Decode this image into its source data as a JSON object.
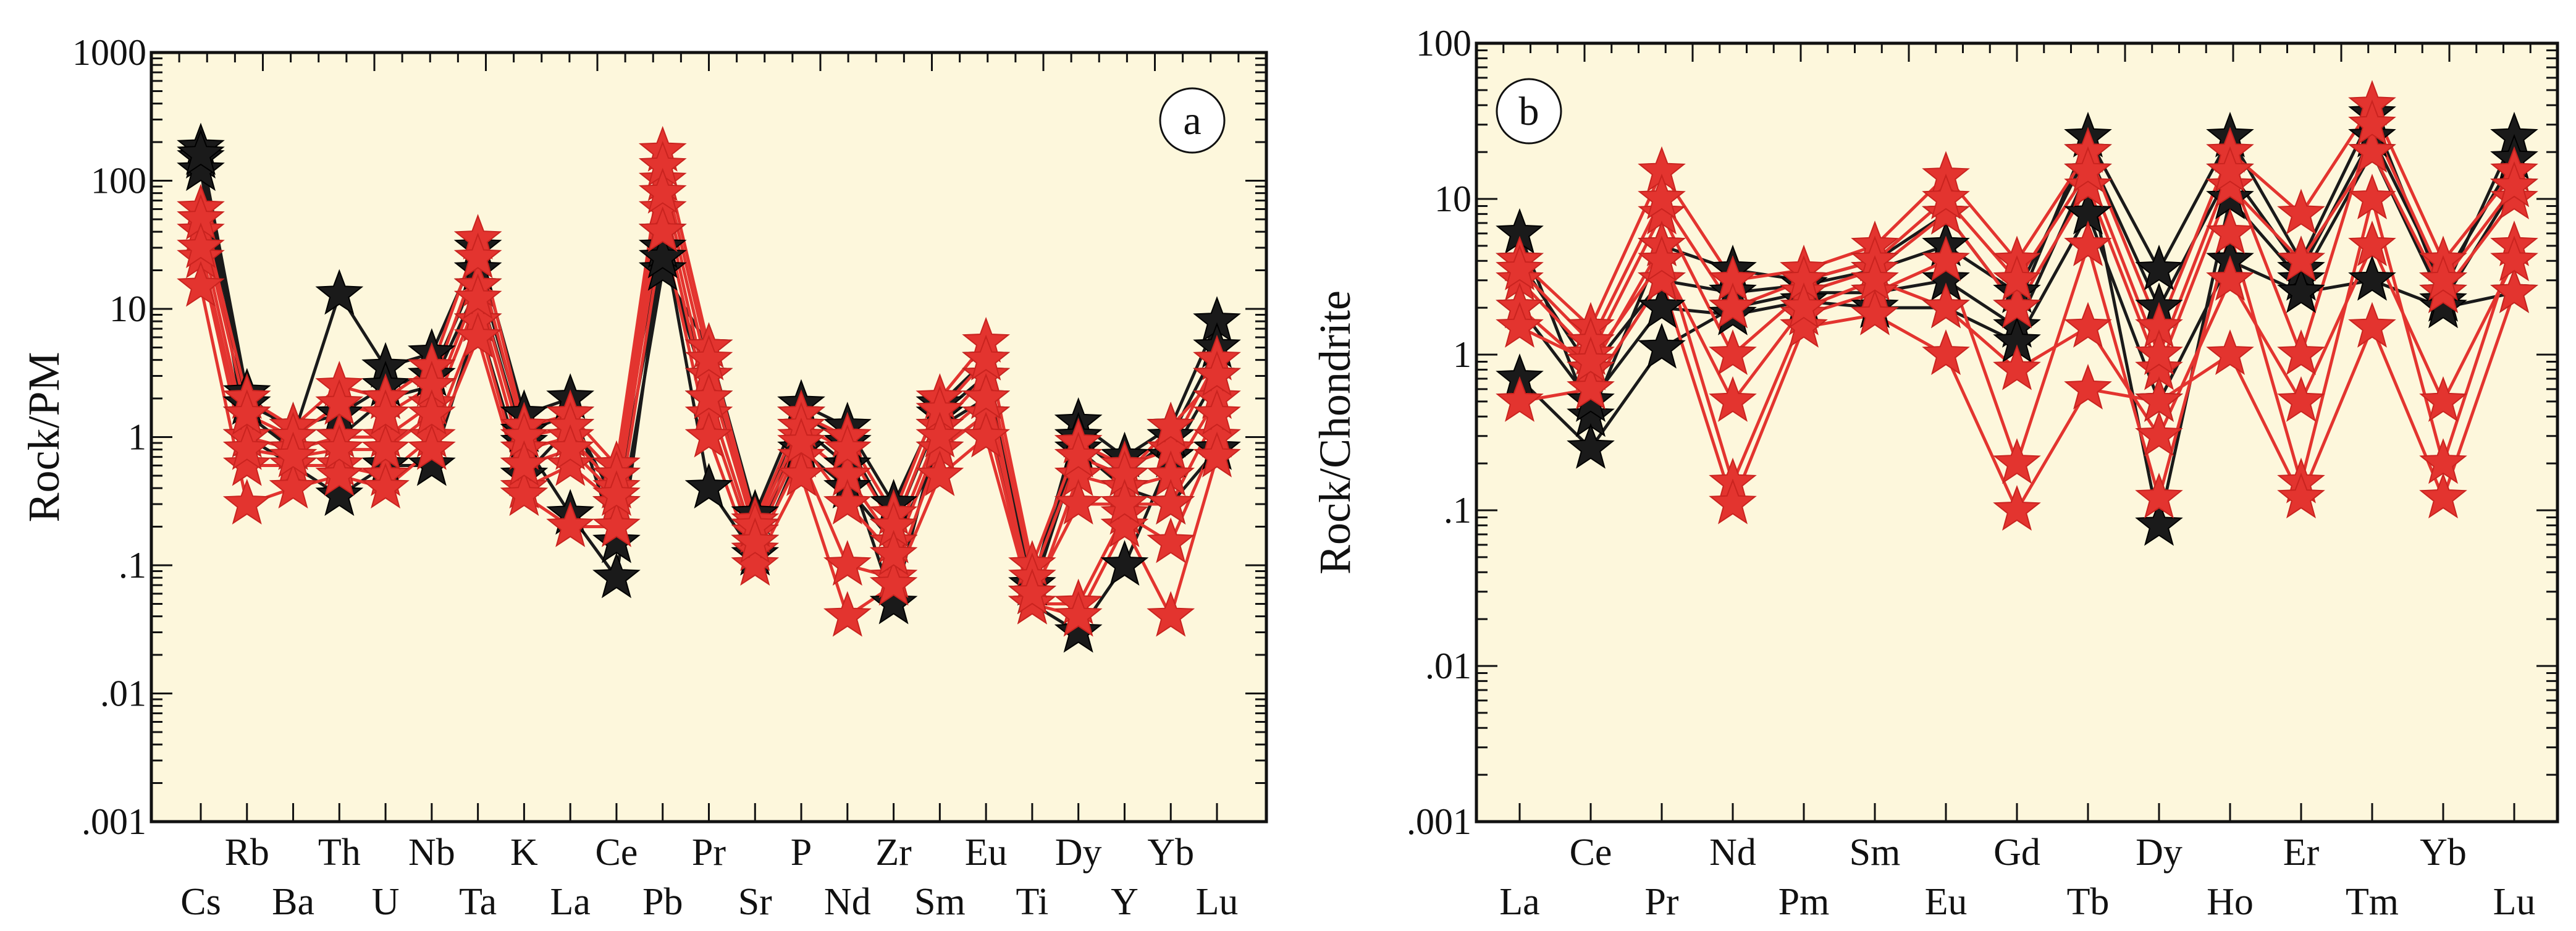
{
  "chart_data": [
    {
      "type": "line",
      "panel_label": "a",
      "ylabel": "Rock/PM",
      "yscale": "log",
      "ylim": [
        0.001,
        1000
      ],
      "ytick_labels": [
        "1000",
        "100",
        "10",
        "1",
        ".1",
        ".01",
        ".001"
      ],
      "categories": [
        "Cs",
        "Rb",
        "Ba",
        "Th",
        "U",
        "Nb",
        "Ta",
        "K",
        "La",
        "Ce",
        "Pb",
        "Pr",
        "Sr",
        "P",
        "Nd",
        "Zr",
        "Sm",
        "Eu",
        "Ti",
        "Dy",
        "Y",
        "Yb",
        "Lu"
      ],
      "background": "#fdf7dc",
      "series_groups": [
        {
          "name": "black samples",
          "color": "#1a1a1a",
          "marker": "star",
          "series": [
            [
              180,
              2.2,
              1.0,
              13.0,
              3.5,
              4.5,
              30,
              1.5,
              2.0,
              0.15,
              20,
              5.0,
              0.25,
              1.8,
              1.2,
              0.3,
              1.8,
              4.0,
              0.07,
              1.3,
              0.7,
              1.2,
              8.0
            ],
            [
              150,
              1.5,
              0.8,
              1.0,
              2.0,
              2.5,
              15,
              0.9,
              0.25,
              0.08,
              30,
              2.0,
              0.15,
              1.2,
              0.6,
              0.05,
              1.2,
              2.0,
              0.05,
              0.03,
              0.1,
              0.7,
              3.0
            ],
            [
              120,
              1.0,
              0.6,
              0.35,
              0.6,
              0.6,
              8,
              0.5,
              1.2,
              0.5,
              40,
              0.4,
              0.12,
              0.8,
              0.4,
              0.15,
              0.8,
              1.5,
              0.06,
              0.8,
              0.4,
              0.3,
              0.8
            ],
            [
              160,
              1.8,
              1.2,
              1.5,
              2.5,
              3.0,
              20,
              1.1,
              1.5,
              0.3,
              25,
              3.0,
              0.2,
              1.5,
              0.9,
              0.2,
              1.5,
              3.0,
              0.06,
              1.0,
              0.5,
              1.0,
              5.0
            ]
          ]
        },
        {
          "name": "red samples",
          "color": "#e3342f",
          "marker": "star",
          "series": [
            [
              60,
              2.0,
              1.2,
              2.5,
              2.0,
              3.5,
              35,
              1.2,
              1.5,
              0.6,
              170,
              5.0,
              0.22,
              1.5,
              1.0,
              0.25,
              2.0,
              5.5,
              0.1,
              0.9,
              0.6,
              0.8,
              4.0
            ],
            [
              40,
              1.0,
              0.8,
              1.0,
              1.0,
              1.8,
              15,
              0.8,
              1.0,
              0.4,
              100,
              3.0,
              0.18,
              1.0,
              0.5,
              0.15,
              1.2,
              3.0,
              0.05,
              0.5,
              0.4,
              0.5,
              2.0
            ],
            [
              25,
              0.6,
              0.6,
              0.6,
              0.5,
              1.0,
              8,
              0.4,
              0.6,
              0.3,
              60,
              1.5,
              0.13,
              0.7,
              0.1,
              0.08,
              0.8,
              1.5,
              0.05,
              0.05,
              0.25,
              0.15,
              1.0
            ],
            [
              15,
              0.3,
              0.4,
              0.5,
              0.4,
              0.8,
              6,
              0.35,
              0.2,
              0.2,
              40,
              1.0,
              0.1,
              0.5,
              0.04,
              0.07,
              0.5,
              1.0,
              0.05,
              0.04,
              0.2,
              0.04,
              0.7
            ],
            [
              50,
              1.5,
              1.0,
              1.8,
              1.5,
              2.5,
              25,
              1.0,
              1.2,
              0.5,
              130,
              4.0,
              0.2,
              1.2,
              0.8,
              0.2,
              1.6,
              4.0,
              0.08,
              0.7,
              0.5,
              1.2,
              3.0
            ],
            [
              30,
              0.8,
              0.7,
              0.8,
              0.8,
              1.5,
              12,
              0.6,
              0.8,
              0.35,
              80,
              2.0,
              0.15,
              0.9,
              0.3,
              0.12,
              1.0,
              2.0,
              0.06,
              0.3,
              0.3,
              0.3,
              1.5
            ]
          ]
        }
      ]
    },
    {
      "type": "line",
      "panel_label": "b",
      "ylabel": "Rock/Chondrite",
      "yscale": "log",
      "ylim": [
        0.001,
        100
      ],
      "ytick_labels": [
        "100",
        "10",
        "1",
        ".1",
        ".01",
        ".001"
      ],
      "categories": [
        "La",
        "Ce",
        "Pr",
        "Nd",
        "Pm",
        "Sm",
        "Eu",
        "Gd",
        "Tb",
        "Dy",
        "Ho",
        "Er",
        "Tm",
        "Yb",
        "Lu"
      ],
      "background": "#fdf7dc",
      "series_groups": [
        {
          "name": "black samples",
          "color": "#1a1a1a",
          "marker": "star",
          "series": [
            [
              6.0,
              0.4,
              5.0,
              3.5,
              3.0,
              4.0,
              8.0,
              2.0,
              25,
              3.5,
              25,
              4.0,
              35,
              2.5,
              25
            ],
            [
              0.7,
              0.25,
              1.1,
              2.0,
              2.5,
              2.5,
              3.0,
              1.5,
              15,
              0.08,
              10,
              3.0,
              20,
              2.2,
              12
            ],
            [
              4.0,
              0.8,
              3.0,
              2.5,
              2.8,
              3.5,
              5.0,
              2.5,
              20,
              2.0,
              15,
              3.5,
              25,
              3.0,
              18
            ],
            [
              2.0,
              0.5,
              2.0,
              1.8,
              2.2,
              2.0,
              2.0,
              1.2,
              8,
              0.5,
              4,
              2.5,
              3,
              2.0,
              2.5
            ]
          ]
        },
        {
          "name": "red samples",
          "color": "#e3342f",
          "marker": "star",
          "series": [
            [
              4.0,
              1.5,
              15,
              3.0,
              3.5,
              5.0,
              14,
              4.0,
              20,
              1.5,
              20,
              8.0,
              40,
              4.0,
              15
            ],
            [
              3.0,
              1.0,
              8,
              1.0,
              2.5,
              3.5,
              8,
              2.0,
              12,
              0.8,
              12,
              4.0,
              20,
              2.5,
              10
            ],
            [
              2.0,
              0.8,
              5,
              0.15,
              1.8,
              2.5,
              4,
              0.2,
              5,
              0.12,
              6,
              0.15,
              10,
              0.2,
              5
            ],
            [
              0.5,
              0.6,
              3,
              0.11,
              1.5,
              1.8,
              1.0,
              0.1,
              0.6,
              0.5,
              1.0,
              0.12,
              1.5,
              0.12,
              2.5
            ],
            [
              3.5,
              1.2,
              10,
              2.0,
              3.0,
              4.0,
              10,
              3.0,
              15,
              1.0,
              15,
              1.0,
              30,
              3.0,
              12
            ],
            [
              1.5,
              0.9,
              4,
              0.5,
              2.0,
              3.0,
              2.0,
              0.8,
              1.5,
              0.3,
              3.0,
              0.5,
              5.0,
              0.5,
              4.0
            ]
          ]
        }
      ]
    }
  ]
}
